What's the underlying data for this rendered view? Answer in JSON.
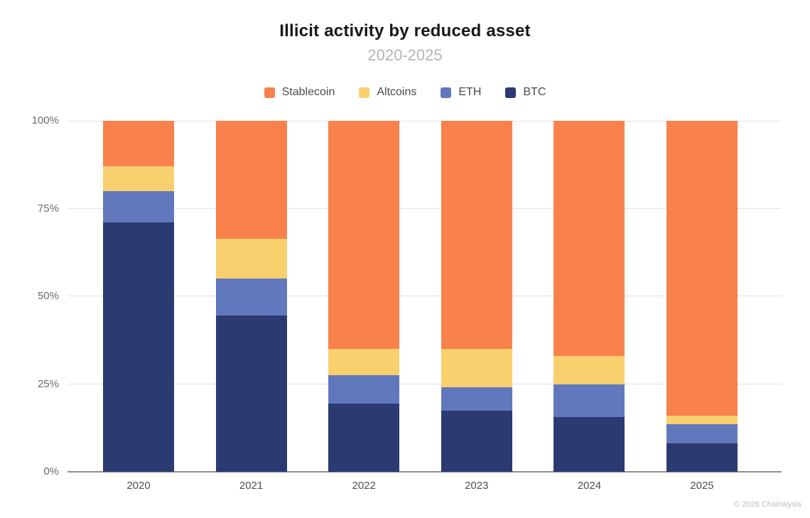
{
  "header": {
    "title": "Illicit activity by reduced asset",
    "subtitle": "2020-2025"
  },
  "chart_data": {
    "type": "bar",
    "stacked": true,
    "title": "Illicit activity by reduced asset",
    "subtitle": "2020-2025",
    "categories": [
      "2020",
      "2021",
      "2022",
      "2023",
      "2024",
      "2025"
    ],
    "series": [
      {
        "name": "Stablecoin",
        "color": "#F9814B",
        "values": [
          13,
          33.5,
          65,
          65,
          67,
          84
        ]
      },
      {
        "name": "Altcoins",
        "color": "#F9D06E",
        "values": [
          7,
          11.5,
          7.5,
          11,
          8,
          2.5
        ]
      },
      {
        "name": "ETH",
        "color": "#6278BD",
        "values": [
          9,
          10.5,
          8,
          6.5,
          9.5,
          5.5
        ]
      },
      {
        "name": "BTC",
        "color": "#2B3A70",
        "values": [
          71,
          44.5,
          19.5,
          17.5,
          15.5,
          8
        ]
      }
    ],
    "stack_order_bottom_to_top": [
      "BTC",
      "ETH",
      "Altcoins",
      "Stablecoin"
    ],
    "units": "percent",
    "ylim": [
      0,
      100
    ],
    "y_ticks": [
      "0%",
      "25%",
      "50%",
      "75%",
      "100%"
    ],
    "grid": "horizontal",
    "legend_position": "top",
    "colors": {
      "gridline": "#e3e3e3",
      "axis_line": "#8f8f8f",
      "title_text": "#181818",
      "subtitle_text": "#b5b5b5"
    }
  },
  "footer": {
    "credit": "© 2026 Chainalysis"
  }
}
